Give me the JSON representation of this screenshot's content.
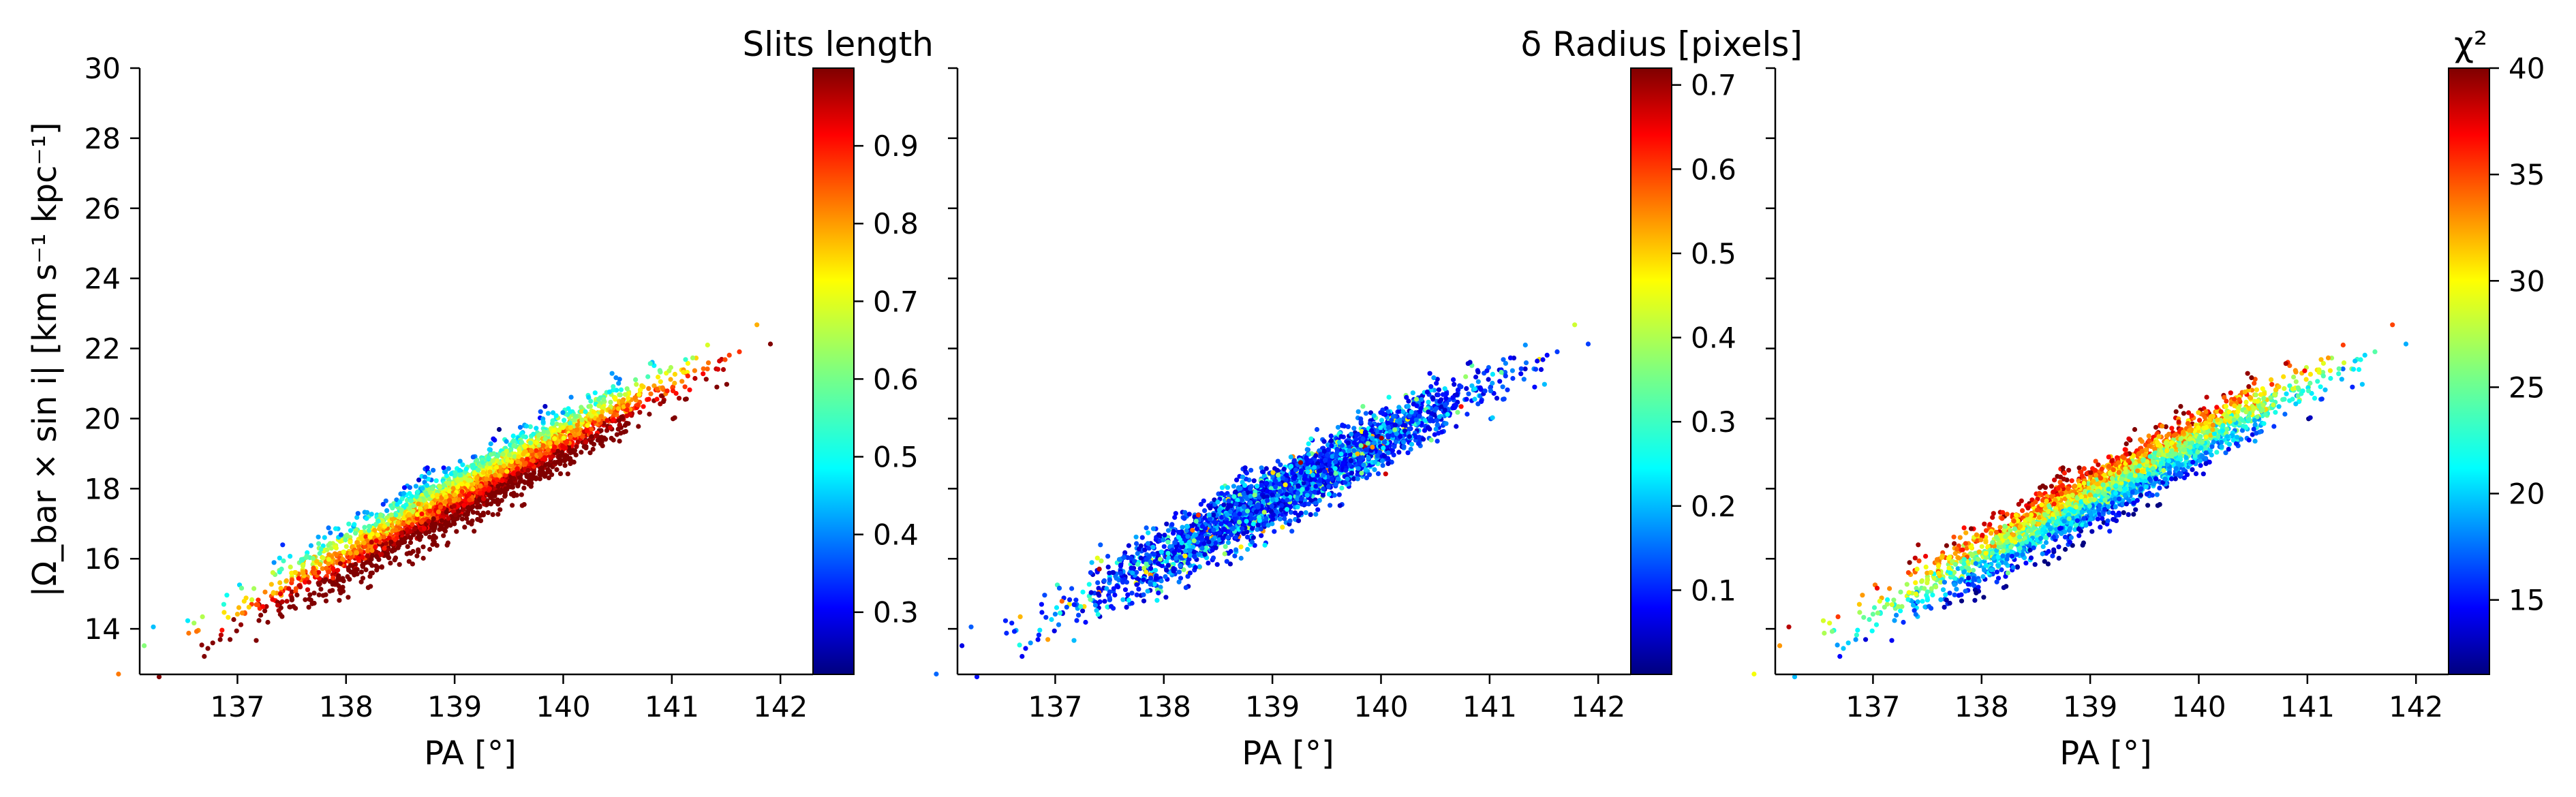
{
  "chart_data": [
    {
      "type": "scatter",
      "panel": "left",
      "xlabel": "PA [°]",
      "ylabel": "|Ω_bar × sin i|   [km s⁻¹ kpc⁻¹]",
      "xlim": [
        136.1,
        142.3
      ],
      "ylim": [
        12.7,
        30
      ],
      "xticks": [
        "137",
        "138",
        "139",
        "140",
        "141",
        "142"
      ],
      "yticks": [
        "14",
        "16",
        "18",
        "20",
        "22",
        "24",
        "26",
        "28",
        "30"
      ],
      "colorbar": {
        "title": "Slits length",
        "range": [
          0.22,
          1.0
        ],
        "ticks": [
          "0.3",
          "0.4",
          "0.5",
          "0.6",
          "0.7",
          "0.8",
          "0.9"
        ],
        "colormap": "jet"
      },
      "points_summary": {
        "count_approx": 3000,
        "trend": "PA increases with pattern speed; band from (136.4, 13.8) to (141.8, 22.2)",
        "color_gradient": "longer slits (dark red) at lower pattern speed, shorter slits (blue) at upper edge"
      }
    },
    {
      "type": "scatter",
      "panel": "middle",
      "xlabel": "PA [°]",
      "xlim": [
        136.1,
        142.3
      ],
      "ylim": [
        12.7,
        30
      ],
      "xticks": [
        "137",
        "138",
        "139",
        "140",
        "141",
        "142"
      ],
      "colorbar": {
        "title": "δ Radius [pixels]",
        "range": [
          0.0,
          0.72
        ],
        "ticks": [
          "0.1",
          "0.2",
          "0.3",
          "0.4",
          "0.5",
          "0.6",
          "0.7"
        ],
        "colormap": "jet"
      },
      "points_summary": {
        "count_approx": 3000,
        "trend": "same band as left panel",
        "color_gradient": "mostly dark blue to cyan (small δ radius), scattered green and a few red"
      }
    },
    {
      "type": "scatter",
      "panel": "right",
      "xlabel": "PA [°]",
      "xlim": [
        136.1,
        142.3
      ],
      "ylim": [
        12.7,
        30
      ],
      "xticks": [
        "137",
        "138",
        "139",
        "140",
        "141",
        "142"
      ],
      "colorbar": {
        "title": "χ²",
        "range": [
          11.5,
          40
        ],
        "ticks": [
          "15",
          "20",
          "25",
          "30",
          "35",
          "40"
        ],
        "colormap": "jet"
      },
      "points_summary": {
        "count_approx": 3000,
        "trend": "same band as left panel",
        "color_gradient": "low χ² (blue) at lower edge, high χ² (orange/red) at upper edge"
      }
    }
  ]
}
